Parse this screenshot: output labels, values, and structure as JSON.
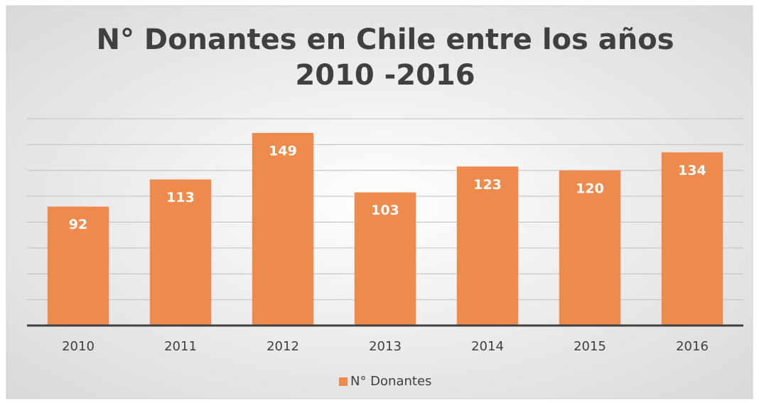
{
  "chart_data": {
    "type": "bar",
    "title": [
      "N° Donantes en Chile entre los años",
      "2010 -2016"
    ],
    "categories": [
      "2010",
      "2011",
      "2012",
      "2013",
      "2014",
      "2015",
      "2016"
    ],
    "series": [
      {
        "name": "N° Donantes",
        "color": "#ee8b4c",
        "values": [
          92,
          113,
          149,
          103,
          123,
          120,
          134
        ]
      }
    ],
    "ylim": [
      0,
      160
    ],
    "yticks": [
      0,
      20,
      40,
      60,
      80,
      100,
      120,
      140,
      160
    ],
    "grid": true,
    "legend": "bottom"
  }
}
